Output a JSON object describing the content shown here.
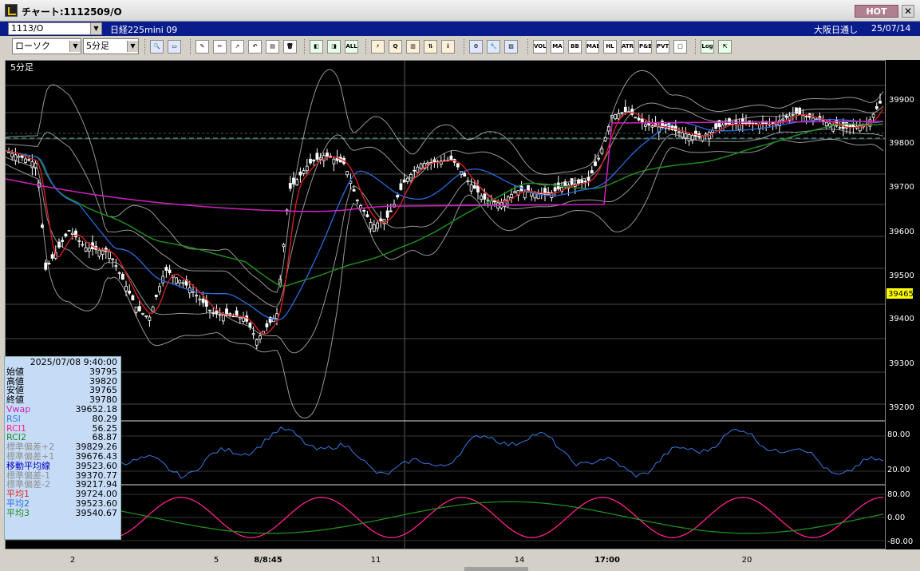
{
  "window": {
    "title": "チャート:1112509/O",
    "hot_label": "HOT",
    "close_glyph": "✕"
  },
  "instrument_bar": {
    "code": "1113/O",
    "name": "日経225mini 09",
    "market": "大阪日通し",
    "date": "25/07/14"
  },
  "toolbar": {
    "chart_type": "ローソク",
    "interval": "5分足",
    "buttons": [
      {
        "name": "zoom-icon",
        "glyph": "🔍"
      },
      {
        "name": "window-icon",
        "glyph": "▭"
      },
      {
        "name": "draw-line-icon",
        "glyph": "✎"
      },
      {
        "name": "pen-icon",
        "glyph": "✏"
      },
      {
        "name": "cursor-icon",
        "glyph": "➚"
      },
      {
        "name": "undo-icon",
        "glyph": "↶"
      },
      {
        "name": "copy-icon",
        "glyph": "▤"
      },
      {
        "name": "trash-icon",
        "glyph": "🗑"
      },
      {
        "name": "candle-icon",
        "glyph": "◧"
      },
      {
        "name": "candle-alt-icon",
        "glyph": "◨"
      },
      {
        "name": "all-icon",
        "glyph": "ALL"
      },
      {
        "name": "signal-icon",
        "glyph": "⚡"
      },
      {
        "name": "search-chart-icon",
        "glyph": "Q"
      },
      {
        "name": "bar-chart-icon",
        "glyph": "▥"
      },
      {
        "name": "compare-icon",
        "glyph": "⇅"
      },
      {
        "name": "info-icon",
        "glyph": "i"
      },
      {
        "name": "settings-icon",
        "glyph": "⚙"
      },
      {
        "name": "wrench-icon",
        "glyph": "🔧"
      },
      {
        "name": "palette-icon",
        "glyph": "▨"
      },
      {
        "name": "volume-icon",
        "glyph": "VOL"
      },
      {
        "name": "ma-icon",
        "glyph": "MA"
      },
      {
        "name": "bb-icon",
        "glyph": "BB"
      },
      {
        "name": "mae-icon",
        "glyph": "MAE"
      },
      {
        "name": "hl-icon",
        "glyph": "HL"
      },
      {
        "name": "atr-icon",
        "glyph": "ATR"
      },
      {
        "name": "pb-icon",
        "glyph": "P&B"
      },
      {
        "name": "pvt-icon",
        "glyph": "PVT"
      },
      {
        "name": "box-icon",
        "glyph": "□"
      },
      {
        "name": "log-icon",
        "glyph": "Log"
      },
      {
        "name": "export-icon",
        "glyph": "⇱"
      }
    ]
  },
  "colors": {
    "background": "#000000",
    "candle": "#ffffff",
    "ma_short": "#e02020",
    "ma_mid": "#2a6ae0",
    "ma_long": "#1e8c1e",
    "vwap": "#d020c0",
    "bollinger": "#c8c8c8",
    "rsi": "#3a78e0",
    "rci1": "#ff2090",
    "rci2": "#1e8c1e",
    "current_price_bg": "#ffff00",
    "dashed_line": "#40a0a0"
  },
  "chart": {
    "panel_label": "5分足",
    "current_price": "39465",
    "price_ticks": [
      "39900",
      "39800",
      "39700",
      "39600",
      "39500",
      "39400",
      "39300",
      "39200"
    ],
    "rsi_ticks": [
      "80.00",
      "20.00"
    ],
    "rci_ticks": [
      "80.00",
      "0.00",
      "-80.00"
    ],
    "x_labels": [
      "2",
      "5",
      "8/8:45",
      "11",
      "14",
      "17:00",
      "20"
    ]
  },
  "infobox": {
    "datetime": "2025/07/08 9:40:00",
    "rows": [
      {
        "label": "始値",
        "value": "39795",
        "color": "#000000"
      },
      {
        "label": "高値",
        "value": "39820",
        "color": "#000000"
      },
      {
        "label": "安値",
        "value": "39765",
        "color": "#000000"
      },
      {
        "label": "終値",
        "value": "39780",
        "color": "#000000"
      },
      {
        "label": "Vwap",
        "value": "39652.18",
        "color": "#d020c0"
      },
      {
        "label": "RSI",
        "value": "80.29",
        "color": "#3a78e0"
      },
      {
        "label": "RCI1",
        "value": "56.25",
        "color": "#ff2090"
      },
      {
        "label": "RCI2",
        "value": "68.87",
        "color": "#1e8c1e"
      },
      {
        "label": "標準偏差+2",
        "value": "39829.26",
        "color": "#909090"
      },
      {
        "label": "標準偏差+1",
        "value": "39676.43",
        "color": "#909090"
      },
      {
        "label": "移動平均線",
        "value": "39523.60",
        "color": "#0000c0"
      },
      {
        "label": "標準偏差-1",
        "value": "39370.77",
        "color": "#909090"
      },
      {
        "label": "標準偏差-2",
        "value": "39217.94",
        "color": "#909090"
      },
      {
        "label": "平均1",
        "value": "39724.00",
        "color": "#e02020"
      },
      {
        "label": "平均2",
        "value": "39523.60",
        "color": "#2a6ae0"
      },
      {
        "label": "平均3",
        "value": "39540.67",
        "color": "#1e8c1e"
      }
    ]
  }
}
